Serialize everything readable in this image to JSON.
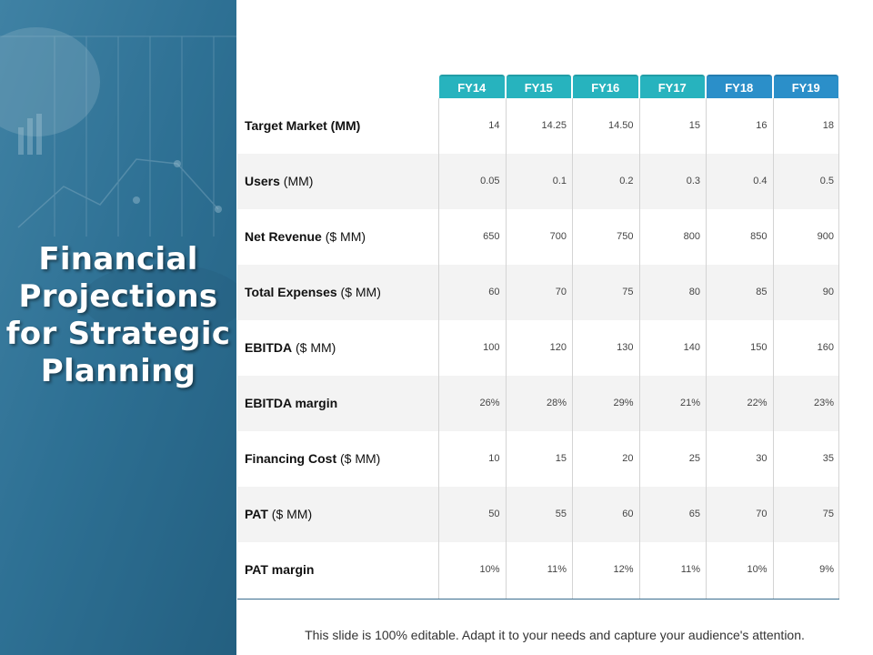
{
  "slide": {
    "title_lines": [
      "Financial",
      "Projections",
      "for Strategic",
      "Planning"
    ],
    "footer": "This slide is 100% editable. Adapt it to your needs and capture your audience's attention."
  },
  "colors": {
    "panel_bg": "#2e6f92",
    "header_teal": "#27b3be",
    "header_blue": "#2b8fc9",
    "row_alt": "#f3f3f3"
  },
  "table": {
    "columns": [
      "FY14",
      "FY15",
      "FY16",
      "FY17",
      "FY18",
      "FY19"
    ],
    "rows": [
      {
        "label_bold": "Target Market (MM)",
        "label_rest": "",
        "values": [
          "14",
          "14.25",
          "14.50",
          "15",
          "16",
          "18"
        ]
      },
      {
        "label_bold": "Users",
        "label_rest": " (MM)",
        "values": [
          "0.05",
          "0.1",
          "0.2",
          "0.3",
          "0.4",
          "0.5"
        ]
      },
      {
        "label_bold": "Net Revenue",
        "label_rest": " ($ MM)",
        "values": [
          "650",
          "700",
          "750",
          "800",
          "850",
          "900"
        ]
      },
      {
        "label_bold": "Total Expenses",
        "label_rest": " ($ MM)",
        "values": [
          "60",
          "70",
          "75",
          "80",
          "85",
          "90"
        ]
      },
      {
        "label_bold": "EBITDA",
        "label_rest": " ($ MM)",
        "values": [
          "100",
          "120",
          "130",
          "140",
          "150",
          "160"
        ]
      },
      {
        "label_bold": "EBITDA margin",
        "label_rest": "",
        "values": [
          "26%",
          "28%",
          "29%",
          "21%",
          "22%",
          "23%"
        ]
      },
      {
        "label_bold": "Financing Cost",
        "label_rest": " ($ MM)",
        "values": [
          "10",
          "15",
          "20",
          "25",
          "30",
          "35"
        ]
      },
      {
        "label_bold": "PAT",
        "label_rest": " ($ MM)",
        "values": [
          "50",
          "55",
          "60",
          "65",
          "70",
          "75"
        ]
      },
      {
        "label_bold": "PAT margin",
        "label_rest": "",
        "values": [
          "10%",
          "11%",
          "12%",
          "11%",
          "10%",
          "9%"
        ]
      }
    ]
  }
}
